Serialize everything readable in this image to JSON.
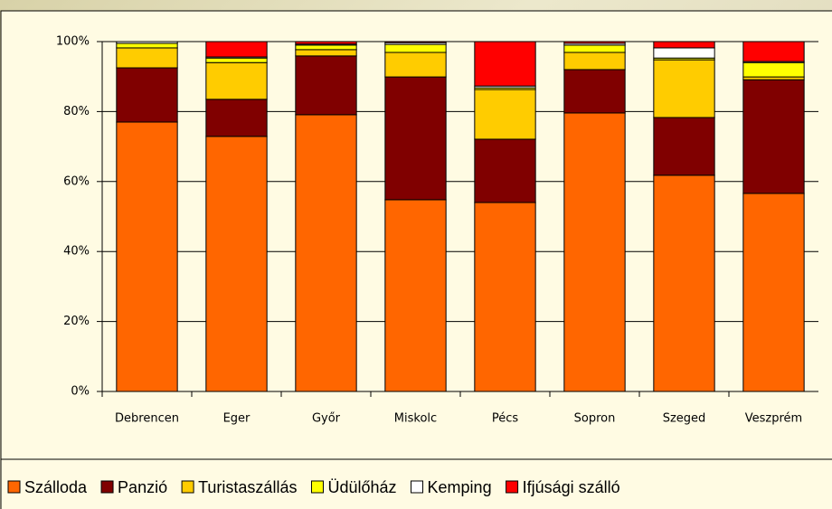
{
  "chart_data": {
    "type": "stacked_bar",
    "categories": [
      "Debrencen",
      "Eger",
      "Győr",
      "Miskolc",
      "Pécs",
      "Sopron",
      "Szeged",
      "Veszprém"
    ],
    "series": [
      {
        "name": "Szálloda",
        "color": "#ff6600",
        "values": [
          77,
          72.9,
          79.1,
          54.8,
          54,
          79.6,
          61.8,
          56.6
        ]
      },
      {
        "name": "Panzió",
        "color": "#800000",
        "values": [
          15.5,
          10.6,
          16.8,
          35.1,
          18.1,
          12.4,
          16.5,
          32.5
        ]
      },
      {
        "name": "Turistaszállás",
        "color": "#ffcc00",
        "values": [
          5.7,
          10.5,
          1.8,
          7,
          14.2,
          4.9,
          16.5,
          0.8
        ]
      },
      {
        "name": "Üdülőház",
        "color": "#ffff00",
        "values": [
          1.3,
          1.3,
          1.3,
          2.3,
          0.5,
          2.1,
          0.5,
          4.1
        ]
      },
      {
        "name": "Kemping",
        "color": "#ffffff",
        "values": [
          0.5,
          0.3,
          0.3,
          0.5,
          0.5,
          0.5,
          2.9,
          0.3
        ]
      },
      {
        "name": "Ifjúsági szálló",
        "color": "#ff0000",
        "values": [
          0,
          4.4,
          0.7,
          0.3,
          12.7,
          0.5,
          1.8,
          5.7
        ]
      }
    ],
    "ylim": [
      0,
      100
    ],
    "yticks": [
      {
        "value": 0,
        "label": "0%"
      },
      {
        "value": 20,
        "label": "20%"
      },
      {
        "value": 40,
        "label": "40%"
      },
      {
        "value": 60,
        "label": "60%"
      },
      {
        "value": 80,
        "label": "80%"
      },
      {
        "value": 100,
        "label": "100%"
      }
    ],
    "grid": true,
    "legend": "bottom"
  }
}
